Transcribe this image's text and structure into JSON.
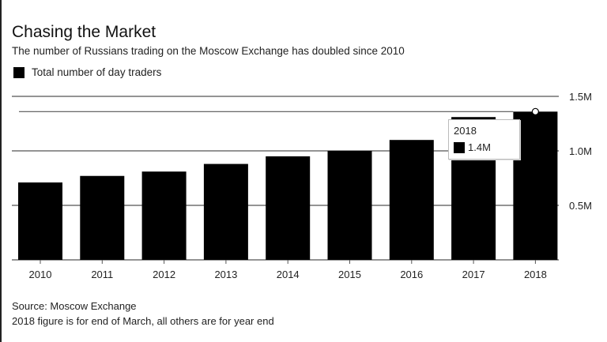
{
  "title": "Chasing the Market",
  "subtitle": "The number of Russians trading on the Moscow Exchange has doubled since 2010",
  "legend": {
    "label": "Total number of day traders",
    "color": "#000000"
  },
  "source": "Source: Moscow Exchange",
  "note": "2018 figure is for end of March, all others are for year end",
  "tooltip": {
    "year": "2018",
    "value_label": "1.4M"
  },
  "chart_data": {
    "type": "bar",
    "title": "Chasing the Market",
    "subtitle": "The number of Russians trading on the Moscow Exchange has doubled since 2010",
    "xlabel": "",
    "ylabel": "",
    "categories": [
      "2010",
      "2011",
      "2012",
      "2013",
      "2014",
      "2015",
      "2016",
      "2017",
      "2018"
    ],
    "series": [
      {
        "name": "Total number of day traders",
        "color": "#000000",
        "values": [
          0.71,
          0.77,
          0.81,
          0.88,
          0.95,
          1.0,
          1.1,
          1.31,
          1.36
        ]
      }
    ],
    "ylim": [
      0,
      1.5
    ],
    "yticks": [
      0.5,
      1.0,
      1.5
    ],
    "ytick_labels": [
      "0.5M",
      "1.0M",
      "1.5M"
    ],
    "y_axis_position": "right",
    "grid": true,
    "legend_position": "top-left",
    "highlight": {
      "category": "2018",
      "label": "1.4M"
    }
  }
}
